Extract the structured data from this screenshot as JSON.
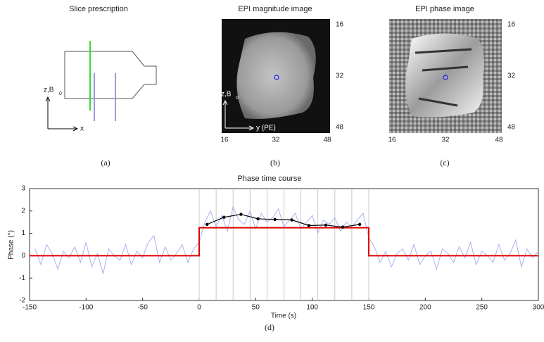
{
  "panels": [
    {
      "title": "Slice prescription",
      "label": "(a)",
      "axis_labels": [
        "z,B",
        "0",
        "x"
      ]
    },
    {
      "title": "EPI magnitude image",
      "label": "(b)",
      "axis_labels": [
        "z,B",
        "0",
        "y (PE)"
      ],
      "xticks": [
        16,
        32,
        48
      ],
      "yticks": [
        16,
        32,
        48
      ]
    },
    {
      "title": "EPI phase image",
      "label": "(c)",
      "xticks": [
        16,
        32,
        48
      ],
      "yticks": [
        16,
        32,
        48
      ]
    }
  ],
  "chart_data": {
    "type": "line",
    "title": "Phase time course",
    "label": "(d)",
    "xlabel": "Time (s)",
    "ylabel": "Phase (°)",
    "xlim": [
      -150,
      300
    ],
    "ylim": [
      -2,
      3
    ],
    "xticks": [
      -150,
      -100,
      -50,
      0,
      50,
      100,
      150,
      200,
      250,
      300
    ],
    "yticks": [
      -2,
      -1,
      0,
      1,
      2,
      3
    ],
    "vlines": [
      0,
      15,
      30,
      45,
      60,
      75,
      90,
      105,
      120,
      135,
      150
    ],
    "series": [
      {
        "color": "#aab2ec",
        "x": [
          -145,
          -140,
          -135,
          -130,
          -125,
          -120,
          -115,
          -110,
          -105,
          -100,
          -95,
          -90,
          -85,
          -80,
          -75,
          -70,
          -65,
          -60,
          -55,
          -50,
          -45,
          -40,
          -35,
          -30,
          -25,
          -20,
          -15,
          -10,
          -5,
          0,
          5,
          10,
          15,
          20,
          25,
          30,
          35,
          40,
          45,
          50,
          55,
          60,
          65,
          70,
          75,
          80,
          85,
          90,
          95,
          100,
          105,
          110,
          115,
          120,
          125,
          130,
          135,
          140,
          145,
          150,
          155,
          160,
          165,
          170,
          175,
          180,
          185,
          190,
          195,
          200,
          205,
          210,
          215,
          220,
          225,
          230,
          235,
          240,
          245,
          250,
          255,
          260,
          265,
          270,
          275,
          280,
          285,
          290,
          295,
          300
        ],
        "values": [
          0.3,
          -0.4,
          0.5,
          0.1,
          -0.6,
          0.2,
          -0.1,
          0.4,
          -0.3,
          0.6,
          -0.5,
          0.1,
          -0.8,
          0.3,
          0.0,
          -0.2,
          0.5,
          -0.4,
          0.2,
          -0.1,
          0.6,
          0.9,
          -0.3,
          0.4,
          -0.2,
          0.1,
          0.5,
          -0.3,
          0.3,
          0.6,
          1.5,
          2.0,
          1.3,
          1.8,
          1.1,
          2.2,
          1.6,
          1.4,
          2.0,
          1.2,
          1.9,
          1.5,
          1.7,
          2.1,
          1.3,
          1.6,
          1.9,
          1.2,
          1.5,
          1.8,
          1.0,
          1.6,
          1.4,
          1.7,
          1.1,
          1.5,
          1.3,
          1.6,
          1.9,
          0.8,
          0.4,
          -0.3,
          0.2,
          -0.5,
          0.1,
          0.3,
          -0.2,
          0.5,
          -0.4,
          0.0,
          0.2,
          -0.6,
          0.3,
          0.1,
          -0.3,
          0.4,
          -0.1,
          0.6,
          -0.4,
          0.2,
          0.0,
          -0.3,
          0.5,
          -0.2,
          0.1,
          0.7,
          -0.5,
          0.3,
          -0.1,
          0.2
        ]
      },
      {
        "color": "#e00000",
        "x": [
          -150,
          0,
          0,
          150,
          150,
          300
        ],
        "values": [
          0,
          0,
          1.25,
          1.25,
          0,
          0
        ]
      },
      {
        "color": "#000000",
        "markers": true,
        "x": [
          7,
          22,
          37,
          52,
          67,
          82,
          97,
          112,
          127,
          142
        ],
        "values": [
          1.4,
          1.72,
          1.85,
          1.65,
          1.62,
          1.6,
          1.35,
          1.37,
          1.28,
          1.4
        ]
      }
    ]
  }
}
